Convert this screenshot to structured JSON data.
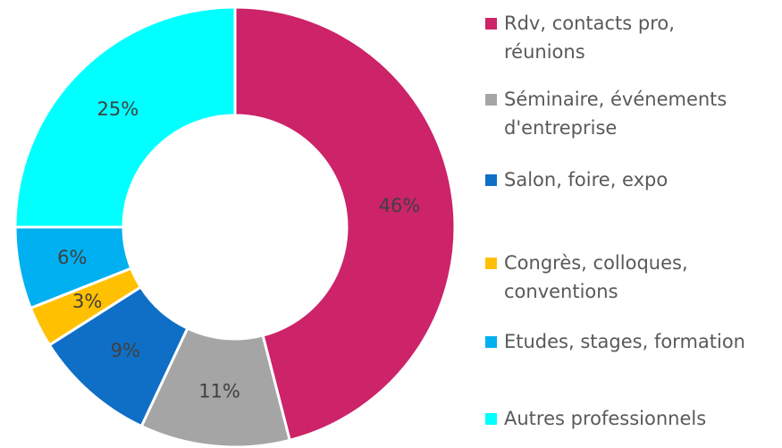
{
  "chart_data": {
    "type": "donut",
    "categories": [
      "Rdv, contacts pro, réunions",
      "Séminaire, événements d'entreprise",
      "Salon, foire, expo",
      "Congrès, colloques, conventions",
      "Etudes, stages, formation",
      "Autres professionnels"
    ],
    "values": [
      46,
      11,
      9,
      3,
      6,
      25
    ],
    "value_labels": [
      "46%",
      "11%",
      "9%",
      "3%",
      "6%",
      "25%"
    ],
    "colors": [
      "#cc2369",
      "#a5a5a5",
      "#0f6fc6",
      "#ffc000",
      "#00b0f0",
      "#00ffff"
    ],
    "legend": "right"
  }
}
